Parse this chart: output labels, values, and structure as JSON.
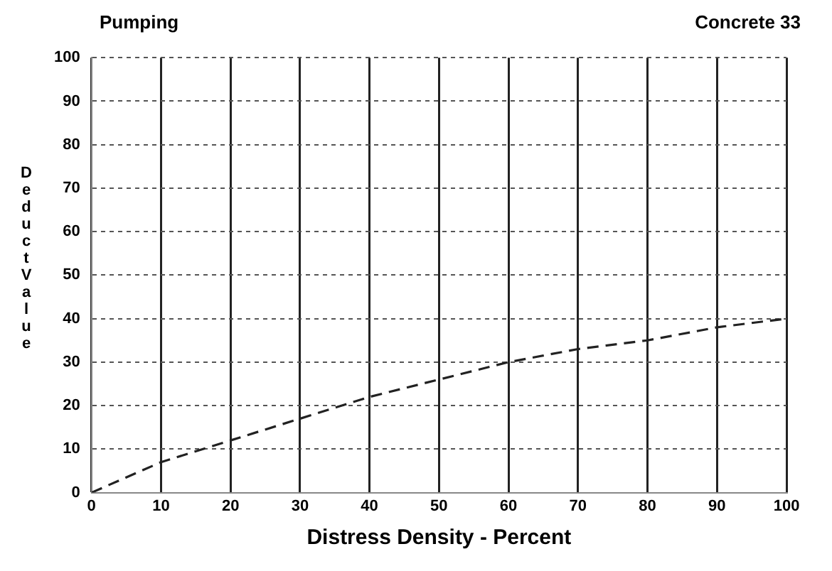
{
  "chart_data": {
    "type": "line",
    "title": "Pumping",
    "subtitle": "Concrete 33",
    "xlabel": "Distress Density - Percent",
    "ylabel": "Deduct Value",
    "x": [
      0,
      10,
      20,
      30,
      40,
      50,
      60,
      70,
      80,
      90,
      100
    ],
    "series": [
      {
        "color": "#222222",
        "values": [
          0,
          7,
          12,
          17,
          22,
          26,
          30,
          33,
          35,
          38,
          40
        ]
      }
    ],
    "xlim": [
      0,
      100
    ],
    "xticks": [
      0,
      10,
      20,
      30,
      40,
      50,
      60,
      70,
      80,
      90,
      100
    ],
    "ylim": [
      0,
      100
    ],
    "yticks": [
      0,
      10,
      20,
      30,
      40,
      50,
      60,
      70,
      80,
      90,
      100
    ],
    "grid": true,
    "legend": false,
    "marker": "none",
    "line_style": "dashed"
  }
}
